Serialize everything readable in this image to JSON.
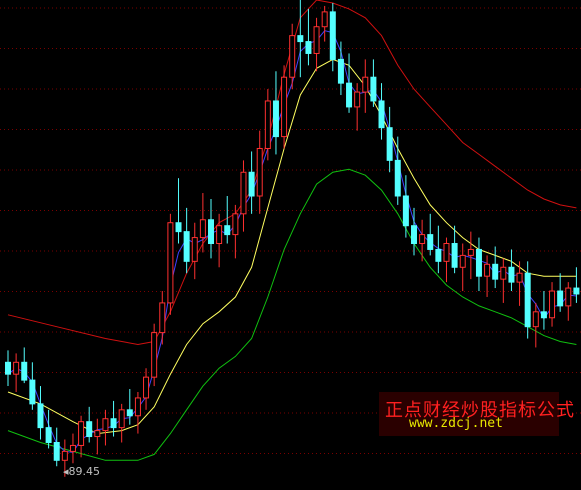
{
  "chart_data": {
    "type": "candlestick",
    "title": "",
    "xlabel": "",
    "ylabel": "",
    "ylim": [
      85,
      250
    ],
    "grid": true,
    "min_label": "89.45",
    "colors": {
      "background": "#000000",
      "grid": "#7a0000",
      "up": "#ff3030",
      "down": "#54ffff",
      "upper_band": "#d01010",
      "lower_band": "#10c010",
      "middle_band": "#ffff60",
      "ma_short": "#4040ff"
    },
    "candles": [
      [
        128,
        132,
        120,
        124
      ],
      [
        124,
        131,
        118,
        128
      ],
      [
        128,
        133,
        121,
        122
      ],
      [
        122,
        128,
        112,
        114
      ],
      [
        114,
        120,
        102,
        106
      ],
      [
        106,
        112,
        99,
        101
      ],
      [
        101,
        106,
        93,
        95
      ],
      [
        95,
        102,
        89.45,
        98
      ],
      [
        98,
        104,
        94,
        100
      ],
      [
        100,
        110,
        96,
        108
      ],
      [
        108,
        113,
        101,
        103
      ],
      [
        103,
        109,
        97,
        105
      ],
      [
        105,
        112,
        100,
        109
      ],
      [
        109,
        115,
        103,
        106
      ],
      [
        106,
        114,
        101,
        112
      ],
      [
        112,
        119,
        107,
        110
      ],
      [
        110,
        118,
        104,
        116
      ],
      [
        116,
        126,
        112,
        123
      ],
      [
        123,
        141,
        120,
        138
      ],
      [
        138,
        152,
        134,
        148
      ],
      [
        148,
        178,
        144,
        175
      ],
      [
        175,
        190,
        168,
        172
      ],
      [
        172,
        180,
        158,
        162
      ],
      [
        162,
        175,
        156,
        170
      ],
      [
        170,
        185,
        165,
        176
      ],
      [
        176,
        183,
        163,
        168
      ],
      [
        168,
        178,
        160,
        174
      ],
      [
        174,
        184,
        168,
        171
      ],
      [
        171,
        181,
        163,
        178
      ],
      [
        178,
        196,
        172,
        192
      ],
      [
        192,
        199,
        178,
        184
      ],
      [
        184,
        206,
        178,
        200
      ],
      [
        200,
        220,
        196,
        216
      ],
      [
        216,
        226,
        198,
        204
      ],
      [
        204,
        228,
        200,
        224
      ],
      [
        224,
        242,
        220,
        238
      ],
      [
        238,
        250,
        224,
        236
      ],
      [
        236,
        247,
        228,
        232
      ],
      [
        232,
        244,
        226,
        241
      ],
      [
        241,
        248,
        236,
        246
      ],
      [
        246,
        249,
        226,
        230
      ],
      [
        230,
        236,
        218,
        222
      ],
      [
        222,
        232,
        212,
        214
      ],
      [
        214,
        222,
        206,
        219
      ],
      [
        219,
        230,
        212,
        224
      ],
      [
        224,
        230,
        214,
        216
      ],
      [
        216,
        222,
        203,
        207
      ],
      [
        207,
        214,
        192,
        196
      ],
      [
        196,
        204,
        181,
        184
      ],
      [
        184,
        191,
        170,
        174
      ],
      [
        174,
        180,
        164,
        168
      ],
      [
        168,
        176,
        162,
        171
      ],
      [
        171,
        178,
        164,
        166
      ],
      [
        166,
        174,
        158,
        162
      ],
      [
        162,
        170,
        155,
        168
      ],
      [
        168,
        174,
        158,
        160
      ],
      [
        160,
        168,
        152,
        164
      ],
      [
        164,
        172,
        156,
        166
      ],
      [
        166,
        170,
        152,
        157
      ],
      [
        157,
        164,
        150,
        161
      ],
      [
        161,
        167,
        153,
        156
      ],
      [
        156,
        163,
        148,
        160
      ],
      [
        160,
        166,
        152,
        155
      ],
      [
        155,
        162,
        147,
        158
      ],
      [
        158,
        162,
        136,
        140
      ],
      [
        140,
        148,
        133,
        145
      ],
      [
        145,
        152,
        139,
        143
      ],
      [
        143,
        155,
        140,
        152
      ],
      [
        152,
        158,
        145,
        147
      ],
      [
        147,
        155,
        142,
        153
      ],
      [
        153,
        160,
        148,
        151
      ]
    ],
    "upper_band": [
      [
        0,
        144
      ],
      [
        6,
        140
      ],
      [
        12,
        136
      ],
      [
        16,
        134
      ],
      [
        18,
        135
      ],
      [
        20,
        145
      ],
      [
        22,
        158
      ],
      [
        24,
        168
      ],
      [
        26,
        175
      ],
      [
        28,
        178
      ],
      [
        30,
        186
      ],
      [
        32,
        203
      ],
      [
        34,
        225
      ],
      [
        36,
        244
      ],
      [
        38,
        250
      ],
      [
        40,
        249
      ],
      [
        42,
        247
      ],
      [
        44,
        244
      ],
      [
        46,
        238
      ],
      [
        48,
        228
      ],
      [
        50,
        220
      ],
      [
        52,
        214
      ],
      [
        54,
        208
      ],
      [
        56,
        202
      ],
      [
        58,
        198
      ],
      [
        60,
        194
      ],
      [
        62,
        190
      ],
      [
        64,
        186
      ],
      [
        66,
        183
      ],
      [
        68,
        181
      ],
      [
        70,
        180
      ]
    ],
    "middle_band": [
      [
        0,
        118
      ],
      [
        4,
        114
      ],
      [
        8,
        108
      ],
      [
        11,
        104
      ],
      [
        14,
        105
      ],
      [
        16,
        107
      ],
      [
        18,
        113
      ],
      [
        20,
        124
      ],
      [
        22,
        134
      ],
      [
        24,
        141
      ],
      [
        26,
        145
      ],
      [
        28,
        150
      ],
      [
        30,
        160
      ],
      [
        32,
        180
      ],
      [
        34,
        200
      ],
      [
        36,
        218
      ],
      [
        38,
        227
      ],
      [
        40,
        230
      ],
      [
        42,
        228
      ],
      [
        44,
        221
      ],
      [
        46,
        211
      ],
      [
        48,
        200
      ],
      [
        50,
        190
      ],
      [
        52,
        181
      ],
      [
        54,
        175
      ],
      [
        56,
        170
      ],
      [
        58,
        166
      ],
      [
        60,
        164
      ],
      [
        62,
        162
      ],
      [
        64,
        158
      ],
      [
        66,
        157
      ],
      [
        68,
        157
      ],
      [
        70,
        157
      ]
    ],
    "lower_band": [
      [
        0,
        105
      ],
      [
        4,
        101
      ],
      [
        8,
        98
      ],
      [
        12,
        95
      ],
      [
        16,
        95
      ],
      [
        18,
        97
      ],
      [
        20,
        104
      ],
      [
        22,
        112
      ],
      [
        24,
        120
      ],
      [
        26,
        126
      ],
      [
        28,
        130
      ],
      [
        30,
        136
      ],
      [
        32,
        150
      ],
      [
        34,
        166
      ],
      [
        36,
        178
      ],
      [
        38,
        188
      ],
      [
        40,
        192
      ],
      [
        42,
        193
      ],
      [
        44,
        191
      ],
      [
        46,
        186
      ],
      [
        48,
        178
      ],
      [
        50,
        168
      ],
      [
        52,
        160
      ],
      [
        54,
        154
      ],
      [
        56,
        150
      ],
      [
        58,
        147
      ],
      [
        60,
        145
      ],
      [
        62,
        143
      ],
      [
        64,
        140
      ],
      [
        66,
        137
      ],
      [
        68,
        135
      ],
      [
        70,
        134
      ]
    ]
  },
  "watermark": {
    "title": "正点财经炒股指标公式",
    "url": "www.zdcj.net"
  }
}
